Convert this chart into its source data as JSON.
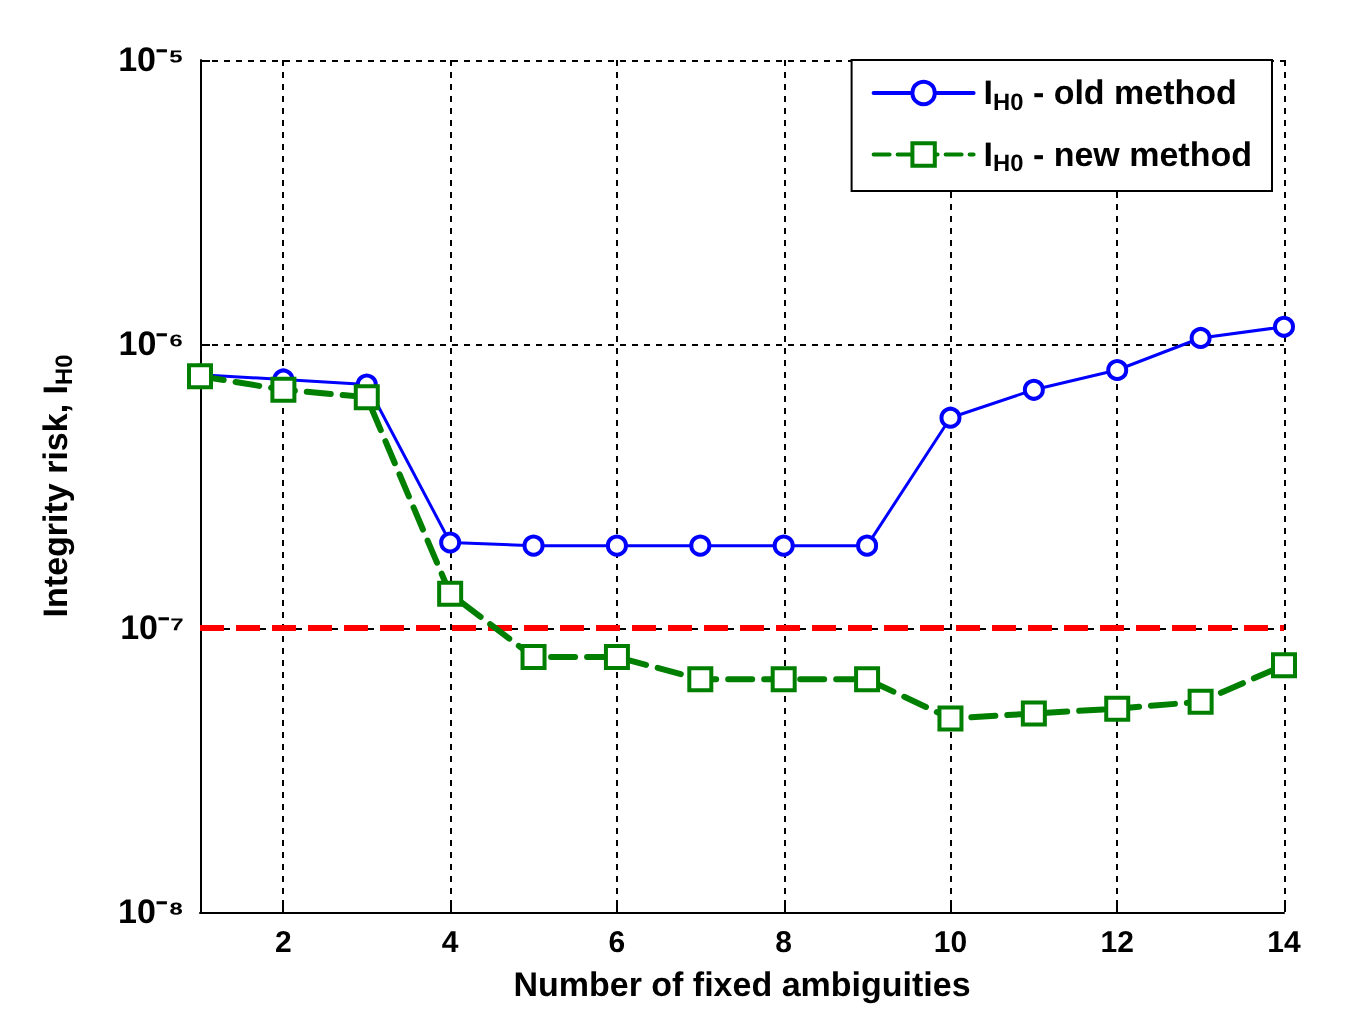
{
  "chart_data": {
    "type": "line",
    "xlabel": "Number of fixed ambiguities",
    "ylabel": "Integrity risk, I$_{H0}$",
    "x": [
      1,
      2,
      3,
      4,
      5,
      6,
      7,
      8,
      9,
      10,
      11,
      12,
      13,
      14
    ],
    "series": [
      {
        "name": "I$_{H0}$ - old method",
        "color": "#0000ff",
        "marker": "circle",
        "line_style": "solid",
        "values": [
          7.8e-07,
          7.5e-07,
          7.2e-07,
          2e-07,
          1.95e-07,
          1.95e-07,
          1.95e-07,
          1.95e-07,
          1.95e-07,
          5.5e-07,
          6.9e-07,
          8.1e-07,
          1.05e-06,
          1.15e-06
        ]
      },
      {
        "name": "I$_{H0}$ - new method",
        "color": "#007f00",
        "marker": "square",
        "line_style": "dashed",
        "values": [
          7.7e-07,
          6.9e-07,
          6.5e-07,
          1.32e-07,
          7.9e-08,
          7.9e-08,
          6.6e-08,
          6.6e-08,
          6.6e-08,
          4.8e-08,
          5e-08,
          5.2e-08,
          5.5e-08,
          7.4e-08
        ]
      }
    ],
    "log": "y",
    "xlim": [
      1,
      14
    ],
    "xticks": [
      2,
      4,
      6,
      8,
      10,
      12,
      14
    ],
    "ylim": [
      1e-08,
      1e-05
    ],
    "yticks": [
      {
        "value": 1e-08,
        "label": "10⁻⁸"
      },
      {
        "value": 1e-07,
        "label": "10⁻⁷"
      },
      {
        "value": 1e-06,
        "label": "10⁻⁶"
      },
      {
        "value": 1e-05,
        "label": "10⁻⁵"
      }
    ],
    "ref_lines": [
      {
        "axis": "y",
        "value": 1e-07,
        "color": "#ff0000",
        "line_style": "dashed"
      }
    ],
    "grid": true,
    "legend": "top right"
  }
}
